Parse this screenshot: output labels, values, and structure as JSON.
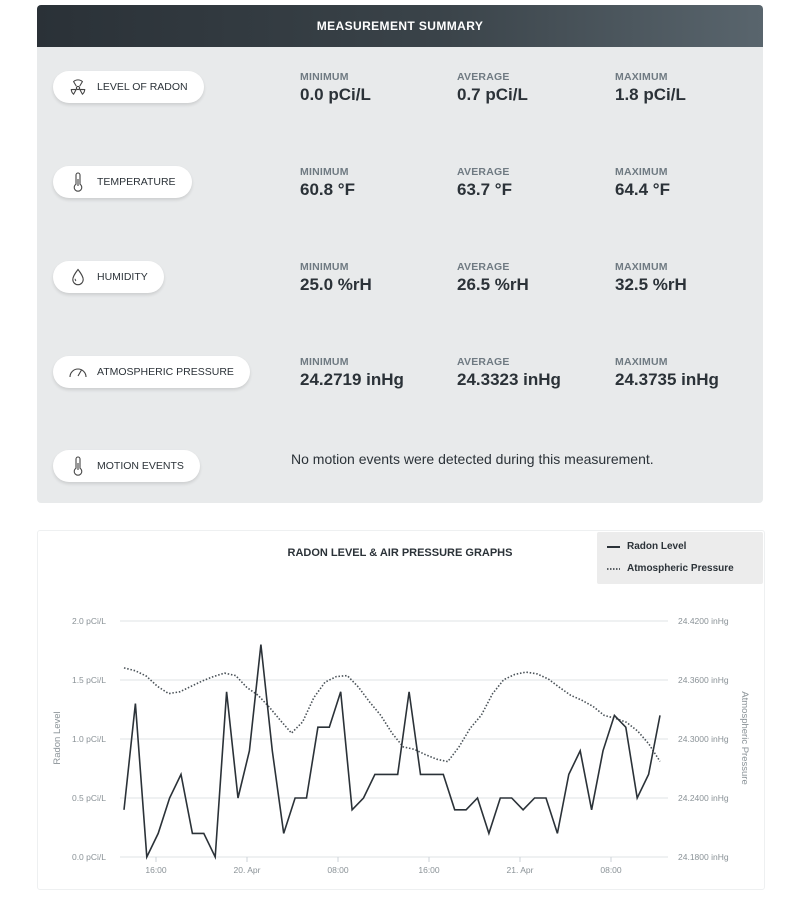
{
  "summary": {
    "title": "MEASUREMENT SUMMARY",
    "metrics": [
      {
        "label": "LEVEL OF RADON",
        "icon": "radiation-icon",
        "min_label": "MINIMUM",
        "min": "0.0 pCi/L",
        "avg_label": "AVERAGE",
        "avg": "0.7 pCi/L",
        "max_label": "MAXIMUM",
        "max": "1.8 pCi/L"
      },
      {
        "label": "TEMPERATURE",
        "icon": "thermometer-icon",
        "min_label": "MINIMUM",
        "min": "60.8 °F",
        "avg_label": "AVERAGE",
        "avg": "63.7 °F",
        "max_label": "MAXIMUM",
        "max": "64.4 °F"
      },
      {
        "label": "HUMIDITY",
        "icon": "droplet-icon",
        "min_label": "MINIMUM",
        "min": "25.0 %rH",
        "avg_label": "AVERAGE",
        "avg": "26.5 %rH",
        "max_label": "MAXIMUM",
        "max": "32.5 %rH"
      },
      {
        "label": "ATMOSPHERIC PRESSURE",
        "icon": "gauge-icon",
        "min_label": "MINIMUM",
        "min": "24.2719 inHg",
        "avg_label": "AVERAGE",
        "avg": "24.3323 inHg",
        "max_label": "MAXIMUM",
        "max": "24.3735 inHg"
      }
    ],
    "motion": {
      "label": "MOTION EVENTS",
      "icon": "motion-sensor-icon",
      "text": "No motion events were detected during this measurement."
    }
  },
  "chart_data": {
    "type": "line",
    "title": "RADON LEVEL & AIR PRESSURE GRAPHS",
    "ylabel": "Radon Level",
    "ylabel_right": "Atmospheric Pressure",
    "ylim": [
      0,
      2.0
    ],
    "ylim_right": [
      24.18,
      24.42
    ],
    "y_ticks": [
      "0.0 pCi/L",
      "0.5 pCi/L",
      "1.0 pCi/L",
      "1.5 pCi/L",
      "2.0 pCi/L"
    ],
    "y_ticks_right": [
      "24.1800 inHg",
      "24.2400 inHg",
      "24.3000 inHg",
      "24.3600 inHg",
      "24.4200 inHg"
    ],
    "x_ticks": [
      "16:00",
      "20. Apr",
      "08:00",
      "16:00",
      "21. Apr",
      "08:00"
    ],
    "grid": true,
    "legend": "top-right",
    "series": [
      {
        "name": "Radon Level",
        "style": "solid",
        "color": "#2b3238",
        "values": [
          0.4,
          1.3,
          0.0,
          0.2,
          0.5,
          0.7,
          0.2,
          0.2,
          0.0,
          1.4,
          0.5,
          0.9,
          1.8,
          0.9,
          0.2,
          0.5,
          0.5,
          1.1,
          1.1,
          1.4,
          0.4,
          0.5,
          0.7,
          0.7,
          0.7,
          1.4,
          0.7,
          0.7,
          0.7,
          0.4,
          0.4,
          0.5,
          0.2,
          0.5,
          0.5,
          0.4,
          0.5,
          0.5,
          0.2,
          0.7,
          0.9,
          0.4,
          0.9,
          1.2,
          1.1,
          0.5,
          0.7,
          1.2
        ]
      },
      {
        "name": "Atmospheric Pressure",
        "style": "dotted",
        "color": "#4a5258",
        "values": [
          24.3723,
          24.3695,
          24.364,
          24.3535,
          24.3462,
          24.348,
          24.3535,
          24.359,
          24.3635,
          24.367,
          24.3645,
          24.3525,
          24.3445,
          24.3325,
          24.319,
          24.306,
          24.3175,
          24.342,
          24.3578,
          24.3635,
          24.3645,
          24.3527,
          24.3375,
          24.324,
          24.306,
          24.292,
          24.2895,
          24.284,
          24.2795,
          24.277,
          24.292,
          24.311,
          24.3242,
          24.346,
          24.3603,
          24.3657,
          24.368,
          24.3662,
          24.361,
          24.3525,
          24.3444,
          24.3395,
          24.3332,
          24.324,
          24.321,
          24.317,
          24.308,
          24.295,
          24.2772
        ]
      }
    ]
  }
}
